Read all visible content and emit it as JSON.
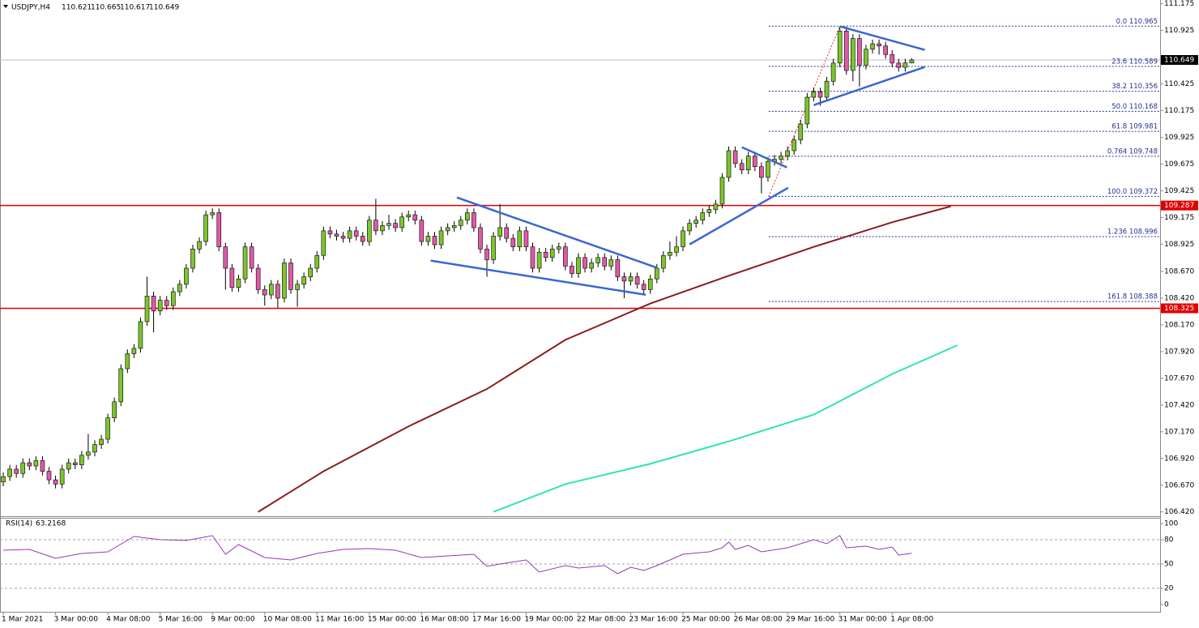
{
  "chart_data": [
    {
      "type": "candlestick",
      "title": "USDJPY,H4",
      "categories": [
        "1 Mar 2021",
        null,
        null,
        null,
        null,
        null,
        null,
        null,
        "3 Mar 00:00",
        null,
        null,
        null,
        null,
        null,
        null,
        null,
        "4 Mar 08:00",
        null,
        null,
        null,
        null,
        null,
        null,
        null,
        "5 Mar 16:00",
        null,
        null,
        null,
        null,
        null,
        null,
        null,
        "9 Mar 00:00",
        null,
        null,
        null,
        null,
        null,
        null,
        null,
        "10 Mar 08:00",
        null,
        null,
        null,
        null,
        null,
        null,
        null,
        "11 Mar 16:00",
        null,
        null,
        null,
        null,
        null,
        null,
        null,
        "15 Mar 00:00",
        null,
        null,
        null,
        null,
        null,
        null,
        null,
        "16 Mar 08:00",
        null,
        null,
        null,
        null,
        null,
        null,
        null,
        "17 Mar 16:00",
        null,
        null,
        null,
        null,
        null,
        null,
        null,
        "19 Mar 00:00",
        null,
        null,
        null,
        null,
        null,
        null,
        null,
        "22 Mar 08:00",
        null,
        null,
        null,
        null,
        null,
        null,
        null,
        "23 Mar 16:00",
        null,
        null,
        null,
        null,
        null,
        null,
        null,
        "25 Mar 00:00",
        null,
        null,
        null,
        null,
        null,
        null,
        null,
        "26 Mar 08:00",
        null,
        null,
        null,
        null,
        null,
        null,
        null,
        "29 Mar 16:00",
        null,
        null,
        null,
        null,
        null,
        null,
        null,
        "31 Mar 00:00",
        null,
        null,
        null,
        null,
        null,
        null,
        null,
        "1 Apr 08:00",
        null,
        null,
        null
      ],
      "open": [
        106.7,
        106.75,
        106.82,
        106.78,
        106.88,
        106.85,
        106.9,
        106.8,
        106.72,
        106.68,
        106.82,
        106.88,
        106.86,
        106.95,
        106.98,
        107.05,
        107.1,
        107.3,
        107.45,
        107.76,
        107.9,
        107.95,
        108.2,
        108.44,
        108.3,
        108.4,
        108.35,
        108.48,
        108.55,
        108.7,
        108.88,
        108.95,
        109.2,
        109.22,
        108.9,
        108.7,
        108.52,
        108.6,
        108.9,
        108.7,
        108.5,
        108.45,
        108.55,
        108.42,
        108.75,
        108.5,
        108.55,
        108.62,
        108.7,
        108.82,
        109.05,
        109.02,
        109.0,
        108.98,
        109.05,
        109.0,
        108.95,
        109.15,
        109.05,
        109.1,
        109.12,
        109.08,
        109.18,
        109.2,
        109.15,
        108.95,
        109.0,
        108.92,
        109.05,
        109.08,
        109.1,
        109.15,
        109.22,
        109.08,
        108.88,
        108.78,
        109.0,
        109.08,
        108.98,
        108.9,
        109.05,
        108.9,
        108.7,
        108.85,
        108.8,
        108.88,
        108.9,
        108.72,
        108.65,
        108.8,
        108.7,
        108.75,
        108.8,
        108.72,
        108.78,
        108.62,
        108.58,
        108.62,
        108.55,
        108.5,
        108.6,
        108.7,
        108.82,
        108.85,
        108.9,
        109.05,
        109.12,
        109.15,
        109.22,
        109.25,
        109.3,
        109.55,
        109.8,
        109.68,
        109.62,
        109.75,
        109.65,
        109.55,
        109.7,
        109.72,
        109.75,
        109.8,
        109.9,
        110.05,
        110.3,
        110.35,
        110.3,
        110.45,
        110.62,
        110.92,
        110.55,
        110.85,
        110.6,
        110.75,
        110.8,
        110.78,
        110.7,
        110.62,
        110.58,
        110.621
      ],
      "high": [
        106.79,
        106.86,
        106.86,
        106.92,
        106.92,
        106.94,
        106.94,
        106.84,
        106.76,
        106.86,
        106.92,
        106.92,
        106.99,
        107.15,
        107.09,
        107.14,
        107.34,
        107.49,
        107.8,
        107.94,
        107.99,
        108.24,
        108.62,
        108.48,
        108.44,
        108.44,
        108.52,
        108.59,
        108.74,
        108.92,
        108.99,
        109.24,
        109.26,
        109.26,
        108.94,
        108.74,
        108.64,
        108.94,
        108.94,
        108.74,
        108.54,
        108.59,
        108.59,
        108.79,
        108.79,
        108.59,
        108.66,
        108.74,
        108.86,
        109.09,
        109.09,
        109.06,
        109.04,
        109.09,
        109.09,
        109.04,
        109.19,
        109.35,
        109.14,
        109.2,
        109.16,
        109.22,
        109.24,
        109.24,
        109.19,
        109.04,
        109.04,
        109.09,
        109.12,
        109.14,
        109.19,
        109.26,
        109.26,
        109.12,
        108.92,
        109.04,
        109.3,
        109.12,
        109.02,
        109.09,
        109.09,
        108.94,
        108.89,
        108.89,
        108.92,
        108.94,
        108.94,
        108.76,
        108.84,
        108.84,
        108.79,
        108.84,
        108.84,
        108.82,
        108.82,
        108.66,
        108.66,
        108.66,
        108.59,
        108.64,
        108.74,
        108.86,
        108.95,
        109.0,
        109.09,
        109.16,
        109.19,
        109.26,
        109.29,
        109.34,
        109.59,
        109.84,
        109.84,
        109.72,
        109.79,
        109.79,
        109.69,
        109.74,
        109.76,
        109.79,
        109.84,
        109.94,
        110.09,
        110.34,
        110.39,
        110.39,
        110.49,
        110.66,
        110.965,
        110.96,
        110.89,
        110.89,
        110.79,
        110.84,
        110.84,
        110.82,
        110.74,
        110.66,
        110.66,
        110.665
      ],
      "low": [
        106.66,
        106.71,
        106.74,
        106.74,
        106.81,
        106.81,
        106.76,
        106.68,
        106.64,
        106.64,
        106.78,
        106.82,
        106.82,
        106.91,
        106.94,
        107.01,
        107.06,
        107.26,
        107.41,
        107.72,
        107.86,
        107.91,
        108.16,
        108.1,
        108.26,
        108.31,
        108.31,
        108.44,
        108.51,
        108.66,
        108.84,
        108.91,
        109.16,
        108.86,
        108.5,
        108.48,
        108.48,
        108.56,
        108.66,
        108.46,
        108.35,
        108.41,
        108.33,
        108.38,
        108.46,
        108.34,
        108.51,
        108.58,
        108.66,
        108.78,
        108.98,
        108.96,
        108.94,
        108.94,
        108.96,
        108.91,
        108.91,
        109.01,
        109.01,
        109.06,
        109.04,
        109.04,
        109.14,
        109.11,
        108.91,
        108.91,
        108.88,
        108.88,
        109.01,
        109.04,
        109.06,
        109.11,
        109.04,
        108.84,
        108.62,
        108.74,
        108.96,
        108.94,
        108.86,
        108.86,
        108.86,
        108.66,
        108.66,
        108.76,
        108.76,
        108.84,
        108.68,
        108.61,
        108.61,
        108.66,
        108.66,
        108.71,
        108.68,
        108.68,
        108.58,
        108.42,
        108.54,
        108.51,
        108.46,
        108.46,
        108.56,
        108.66,
        108.78,
        108.81,
        108.86,
        109.01,
        109.08,
        109.11,
        109.18,
        109.21,
        109.26,
        109.51,
        109.64,
        109.58,
        109.58,
        109.61,
        109.4,
        109.51,
        109.66,
        109.68,
        109.71,
        109.76,
        109.86,
        110.01,
        110.26,
        110.22,
        110.26,
        110.41,
        110.58,
        110.51,
        110.45,
        110.4,
        110.56,
        110.71,
        110.7,
        110.66,
        110.58,
        110.54,
        110.54,
        110.617
      ],
      "close": [
        106.75,
        106.82,
        106.78,
        106.88,
        106.85,
        106.9,
        106.8,
        106.72,
        106.68,
        106.82,
        106.88,
        106.86,
        106.95,
        106.98,
        107.05,
        107.1,
        107.3,
        107.45,
        107.76,
        107.9,
        107.95,
        108.2,
        108.44,
        108.3,
        108.4,
        108.35,
        108.48,
        108.55,
        108.7,
        108.88,
        108.95,
        109.2,
        109.22,
        108.9,
        108.7,
        108.52,
        108.6,
        108.9,
        108.7,
        108.5,
        108.45,
        108.55,
        108.42,
        108.75,
        108.5,
        108.55,
        108.62,
        108.7,
        108.82,
        109.05,
        109.02,
        109.0,
        108.98,
        109.05,
        109.0,
        108.95,
        109.15,
        109.05,
        109.1,
        109.12,
        109.08,
        109.18,
        109.2,
        109.15,
        108.95,
        109.0,
        108.92,
        109.05,
        109.08,
        109.1,
        109.15,
        109.22,
        109.08,
        108.88,
        108.78,
        109.0,
        109.08,
        108.98,
        108.9,
        109.05,
        108.9,
        108.7,
        108.85,
        108.8,
        108.88,
        108.9,
        108.72,
        108.65,
        108.8,
        108.7,
        108.75,
        108.8,
        108.72,
        108.78,
        108.62,
        108.58,
        108.62,
        108.55,
        108.5,
        108.6,
        108.7,
        108.82,
        108.85,
        108.9,
        109.05,
        109.12,
        109.15,
        109.22,
        109.25,
        109.3,
        109.55,
        109.8,
        109.68,
        109.62,
        109.75,
        109.65,
        109.55,
        109.7,
        109.72,
        109.75,
        109.8,
        109.9,
        110.05,
        110.3,
        110.35,
        110.3,
        110.45,
        110.62,
        110.92,
        110.55,
        110.85,
        110.6,
        110.75,
        110.8,
        110.78,
        110.7,
        110.62,
        110.58,
        110.621,
        110.649
      ],
      "up_color": "#7cc52c",
      "down_color": "#e05aa6",
      "xlim": [
        -0.5,
        177
      ],
      "ylim": [
        106.38,
        111.21
      ],
      "yticks": [
        111.175,
        110.925,
        110.425,
        110.175,
        109.925,
        109.675,
        109.425,
        109.175,
        108.925,
        {
          "value": 108.67,
          "label": "108.670"
        },
        {
          "value": 108.42,
          "label": "108.420"
        },
        {
          "value": 108.17,
          "label": "108.170"
        },
        {
          "value": 107.92,
          "label": "107.920"
        },
        {
          "value": 107.67,
          "label": "107.670"
        },
        {
          "value": 107.42,
          "label": "107.420"
        },
        {
          "value": 107.17,
          "label": "107.170"
        },
        {
          "value": 106.92,
          "label": "106.920"
        },
        {
          "value": 106.67,
          "label": "106.670"
        },
        {
          "value": 106.42,
          "label": "106.420"
        }
      ],
      "averages": [
        {
          "color": "#8b1c1c",
          "x": [
            39,
            49,
            62,
            74,
            86,
            99,
            111,
            124,
            136,
            145
          ],
          "values": [
            106.42,
            106.8,
            107.22,
            107.57,
            108.03,
            108.37,
            108.63,
            108.9,
            109.13,
            109.28
          ]
        },
        {
          "color": "#2ee89c",
          "x": [
            75,
            86,
            99,
            111,
            124,
            136,
            146
          ],
          "values": [
            106.42,
            106.68,
            106.87,
            107.08,
            107.33,
            107.71,
            107.98
          ]
        }
      ],
      "trendline_color": "#3a66d2",
      "trendlines": [
        {
          "x": [
            69.4,
            100.1
          ],
          "y": [
            109.362,
            108.703
          ]
        },
        {
          "x": [
            65.4,
            98.3
          ],
          "y": [
            108.771,
            108.452
          ]
        },
        {
          "x": [
            105,
            120.1
          ],
          "y": [
            108.923,
            109.453
          ]
        },
        {
          "x": [
            113,
            119.9
          ],
          "y": [
            109.833,
            109.643
          ]
        },
        {
          "x": [
            124,
            141
          ],
          "y": [
            110.227,
            110.583
          ]
        },
        {
          "x": [
            128,
            141
          ],
          "y": [
            110.963,
            110.743
          ]
        }
      ],
      "fibonacci": {
        "color": "#23308f",
        "anchor_color": "#e03030",
        "x": [
          117.1,
          128
        ],
        "y": [
          109.372,
          110.965
        ],
        "levels": [
          {
            "value": 110.965,
            "label": "0.0 110.965"
          },
          {
            "value": 110.589,
            "label": "23.6 110.589"
          },
          {
            "value": 110.356,
            "label": "38.2 110.356"
          },
          {
            "value": 110.168,
            "label": "50.0 110.168"
          },
          {
            "value": 109.981,
            "label": "61.8 109.981"
          },
          {
            "value": 109.748,
            "label": "0.764 109.748"
          },
          {
            "value": 109.372,
            "label": "100.0 109.372"
          },
          {
            "value": 108.996,
            "label": "1.236 108.996"
          },
          {
            "value": 108.388,
            "label": "161.8 108.388"
          }
        ]
      },
      "hline_color": "#e00000",
      "hlines": [
        109.287,
        108.325
      ]
    },
    {
      "type": "line",
      "title": "RSI(14)",
      "color": "#9a35b8",
      "x": [
        0,
        4,
        8,
        12,
        16,
        20,
        24,
        28,
        32,
        34,
        36,
        40,
        44,
        48,
        52,
        56,
        60,
        64,
        68,
        72,
        74,
        76,
        80,
        82,
        86,
        88,
        92,
        94,
        96,
        98,
        100,
        104,
        108,
        110,
        111,
        112,
        114,
        116,
        120,
        124,
        126,
        128,
        129,
        132,
        134,
        136,
        137,
        139
      ],
      "values": [
        67,
        68,
        57,
        63,
        65,
        84,
        80,
        79,
        85,
        62,
        74,
        58,
        55,
        63,
        68,
        69,
        67,
        58,
        60,
        62,
        47,
        50,
        55,
        40,
        48,
        45,
        48,
        38,
        46,
        42,
        48,
        62,
        65,
        70,
        77,
        68,
        73,
        65,
        70,
        80,
        75,
        85,
        70,
        72,
        68,
        71,
        61,
        63.2168
      ],
      "xlim": [
        -0.5,
        177
      ],
      "ylim": [
        -9,
        106
      ],
      "yticks": [
        0,
        20,
        50,
        80,
        100
      ],
      "levels": [
        20,
        50,
        80
      ]
    }
  ]
}
